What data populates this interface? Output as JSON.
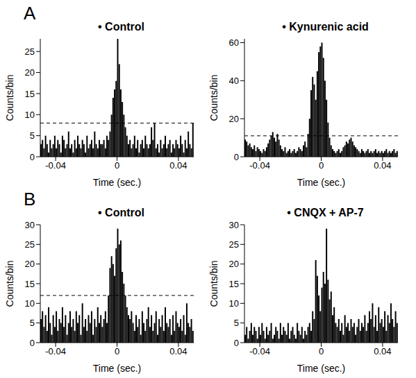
{
  "panels": [
    "A",
    "B"
  ],
  "chart_data": [
    {
      "type": "histogram",
      "title": "• Control",
      "x_label": "Time (sec.)",
      "y_label": "Counts/bin",
      "color": "#000000",
      "xlim": [
        -0.05,
        0.05
      ],
      "xticks": [
        -0.04,
        0,
        0.04
      ],
      "ylim": [
        0,
        28
      ],
      "yticks": [
        0,
        5,
        10,
        15,
        20,
        25
      ],
      "threshold": 8,
      "bins": [
        -0.05,
        -0.049,
        -0.048,
        -0.047,
        -0.046,
        -0.045,
        -0.044,
        -0.043,
        -0.042,
        -0.041,
        -0.04,
        -0.039,
        -0.038,
        -0.037,
        -0.036,
        -0.035,
        -0.034,
        -0.033,
        -0.032,
        -0.031,
        -0.03,
        -0.029,
        -0.028,
        -0.027,
        -0.026,
        -0.025,
        -0.024,
        -0.023,
        -0.022,
        -0.021,
        -0.02,
        -0.019,
        -0.018,
        -0.017,
        -0.016,
        -0.015,
        -0.014,
        -0.013,
        -0.012,
        -0.011,
        -0.01,
        -0.009,
        -0.008,
        -0.007,
        -0.006,
        -0.005,
        -0.004,
        -0.003,
        -0.002,
        -0.001,
        0,
        0.001,
        0.002,
        0.003,
        0.004,
        0.005,
        0.006,
        0.007,
        0.008,
        0.009,
        0.01,
        0.011,
        0.012,
        0.013,
        0.014,
        0.015,
        0.016,
        0.017,
        0.018,
        0.019,
        0.02,
        0.021,
        0.022,
        0.023,
        0.024,
        0.025,
        0.026,
        0.027,
        0.028,
        0.029,
        0.03,
        0.031,
        0.032,
        0.033,
        0.034,
        0.035,
        0.036,
        0.037,
        0.038,
        0.039,
        0.04,
        0.041,
        0.042,
        0.043,
        0.044,
        0.045,
        0.046,
        0.047,
        0.048,
        0.049,
        0.05
      ],
      "values": [
        3,
        4,
        2,
        5,
        3,
        1,
        4,
        2,
        3,
        5,
        2,
        4,
        3,
        1,
        5,
        4,
        2,
        3,
        6,
        2,
        3,
        1,
        4,
        2,
        5,
        3,
        2,
        4,
        3,
        1,
        5,
        2,
        3,
        4,
        2,
        6,
        3,
        2,
        4,
        3,
        3,
        4,
        2,
        5,
        4,
        6,
        10,
        14,
        16,
        18,
        28,
        22,
        16,
        13,
        10,
        7,
        5,
        3,
        4,
        2,
        3,
        5,
        2,
        4,
        1,
        3,
        4,
        2,
        5,
        3,
        2,
        3,
        7,
        4,
        8,
        2,
        3,
        1,
        4,
        2,
        3,
        5,
        2,
        3,
        4,
        1,
        3,
        2,
        4,
        3,
        2,
        5,
        3,
        1,
        4,
        2,
        6,
        3,
        2,
        8
      ]
    },
    {
      "type": "histogram",
      "title": "• Kynurenic acid",
      "x_label": "Time (sec.)",
      "y_label": "Counts/bin",
      "color": "#000000",
      "xlim": [
        -0.05,
        0.05
      ],
      "xticks": [
        -0.04,
        0,
        0.04
      ],
      "ylim": [
        0,
        62
      ],
      "yticks": [
        0,
        20,
        40,
        60
      ],
      "threshold": 11,
      "bins": [
        -0.05,
        -0.049,
        -0.048,
        -0.047,
        -0.046,
        -0.045,
        -0.044,
        -0.043,
        -0.042,
        -0.041,
        -0.04,
        -0.039,
        -0.038,
        -0.037,
        -0.036,
        -0.035,
        -0.034,
        -0.033,
        -0.032,
        -0.031,
        -0.03,
        -0.029,
        -0.028,
        -0.027,
        -0.026,
        -0.025,
        -0.024,
        -0.023,
        -0.022,
        -0.021,
        -0.02,
        -0.019,
        -0.018,
        -0.017,
        -0.016,
        -0.015,
        -0.014,
        -0.013,
        -0.012,
        -0.011,
        -0.01,
        -0.009,
        -0.008,
        -0.007,
        -0.006,
        -0.005,
        -0.004,
        -0.003,
        -0.002,
        -0.001,
        0,
        0.001,
        0.002,
        0.003,
        0.004,
        0.005,
        0.006,
        0.007,
        0.008,
        0.009,
        0.01,
        0.011,
        0.012,
        0.013,
        0.014,
        0.015,
        0.016,
        0.017,
        0.018,
        0.019,
        0.02,
        0.021,
        0.022,
        0.023,
        0.024,
        0.025,
        0.026,
        0.027,
        0.028,
        0.029,
        0.03,
        0.031,
        0.032,
        0.033,
        0.034,
        0.035,
        0.036,
        0.037,
        0.038,
        0.039,
        0.04,
        0.041,
        0.042,
        0.043,
        0.044,
        0.045,
        0.046,
        0.047,
        0.048,
        0.049,
        0.05
      ],
      "values": [
        9,
        8,
        6,
        7,
        5,
        4,
        6,
        3,
        5,
        4,
        3,
        2,
        4,
        3,
        5,
        7,
        9,
        11,
        13,
        10,
        8,
        12,
        9,
        6,
        4,
        3,
        5,
        2,
        3,
        4,
        2,
        3,
        4,
        2,
        3,
        5,
        4,
        3,
        6,
        8,
        5,
        12,
        20,
        35,
        42,
        38,
        30,
        45,
        55,
        58,
        60,
        52,
        40,
        30,
        18,
        10,
        6,
        4,
        3,
        2,
        3,
        4,
        2,
        3,
        5,
        6,
        8,
        7,
        9,
        10,
        8,
        6,
        5,
        4,
        3,
        2,
        4,
        3,
        2,
        3,
        4,
        2,
        3,
        2,
        3,
        4,
        2,
        3,
        2,
        3,
        2,
        3,
        4,
        2,
        3,
        2,
        3,
        4,
        2,
        3
      ]
    },
    {
      "type": "histogram",
      "title": "• Control",
      "x_label": "Time (sec.)",
      "y_label": "Counts/bin",
      "color": "#000000",
      "xlim": [
        -0.05,
        0.05
      ],
      "xticks": [
        -0.04,
        0,
        0.04
      ],
      "ylim": [
        0,
        30
      ],
      "yticks": [
        0,
        5,
        10,
        15,
        20,
        25,
        30
      ],
      "threshold": 12,
      "bins": [
        -0.05,
        -0.049,
        -0.048,
        -0.047,
        -0.046,
        -0.045,
        -0.044,
        -0.043,
        -0.042,
        -0.041,
        -0.04,
        -0.039,
        -0.038,
        -0.037,
        -0.036,
        -0.035,
        -0.034,
        -0.033,
        -0.032,
        -0.031,
        -0.03,
        -0.029,
        -0.028,
        -0.027,
        -0.026,
        -0.025,
        -0.024,
        -0.023,
        -0.022,
        -0.021,
        -0.02,
        -0.019,
        -0.018,
        -0.017,
        -0.016,
        -0.015,
        -0.014,
        -0.013,
        -0.012,
        -0.011,
        -0.01,
        -0.009,
        -0.008,
        -0.007,
        -0.006,
        -0.005,
        -0.004,
        -0.003,
        -0.002,
        -0.001,
        0,
        0.001,
        0.002,
        0.003,
        0.004,
        0.005,
        0.006,
        0.007,
        0.008,
        0.009,
        0.01,
        0.011,
        0.012,
        0.013,
        0.014,
        0.015,
        0.016,
        0.017,
        0.018,
        0.019,
        0.02,
        0.021,
        0.022,
        0.023,
        0.024,
        0.025,
        0.026,
        0.027,
        0.028,
        0.029,
        0.03,
        0.031,
        0.032,
        0.033,
        0.034,
        0.035,
        0.036,
        0.037,
        0.038,
        0.039,
        0.04,
        0.041,
        0.042,
        0.043,
        0.044,
        0.045,
        0.046,
        0.047,
        0.048,
        0.049,
        0.05
      ],
      "values": [
        6,
        8,
        4,
        7,
        3,
        9,
        5,
        2,
        7,
        4,
        8,
        3,
        6,
        5,
        9,
        4,
        7,
        2,
        5,
        8,
        4,
        6,
        3,
        8,
        5,
        7,
        2,
        10,
        4,
        6,
        3,
        7,
        5,
        8,
        2,
        6,
        4,
        9,
        5,
        7,
        4,
        6,
        8,
        5,
        12,
        19,
        22,
        20,
        17,
        24,
        29,
        25,
        26,
        18,
        15,
        12,
        9,
        7,
        6,
        8,
        5,
        3,
        7,
        4,
        6,
        2,
        8,
        5,
        3,
        6,
        9,
        4,
        7,
        3,
        5,
        8,
        2,
        6,
        4,
        7,
        3,
        9,
        5,
        4,
        6,
        2,
        7,
        3,
        8,
        5,
        4,
        6,
        3,
        7,
        2,
        10,
        5,
        4,
        6,
        3
      ]
    },
    {
      "type": "histogram",
      "title": "• CNQX + AP-7",
      "x_label": "Time (sec.)",
      "y_label": "Counts/bin",
      "color": "#000000",
      "xlim": [
        -0.05,
        0.05
      ],
      "xticks": [
        -0.04,
        0,
        0.04
      ],
      "ylim": [
        0,
        30
      ],
      "yticks": [
        0,
        5,
        10,
        15,
        20,
        25,
        30
      ],
      "bins": [
        -0.05,
        -0.049,
        -0.048,
        -0.047,
        -0.046,
        -0.045,
        -0.044,
        -0.043,
        -0.042,
        -0.041,
        -0.04,
        -0.039,
        -0.038,
        -0.037,
        -0.036,
        -0.035,
        -0.034,
        -0.033,
        -0.032,
        -0.031,
        -0.03,
        -0.029,
        -0.028,
        -0.027,
        -0.026,
        -0.025,
        -0.024,
        -0.023,
        -0.022,
        -0.021,
        -0.02,
        -0.019,
        -0.018,
        -0.017,
        -0.016,
        -0.015,
        -0.014,
        -0.013,
        -0.012,
        -0.011,
        -0.01,
        -0.009,
        -0.008,
        -0.007,
        -0.006,
        -0.005,
        -0.004,
        -0.003,
        -0.002,
        -0.001,
        0,
        0.001,
        0.002,
        0.003,
        0.004,
        0.005,
        0.006,
        0.007,
        0.008,
        0.009,
        0.01,
        0.011,
        0.012,
        0.013,
        0.014,
        0.015,
        0.016,
        0.017,
        0.018,
        0.019,
        0.02,
        0.021,
        0.022,
        0.023,
        0.024,
        0.025,
        0.026,
        0.027,
        0.028,
        0.029,
        0.03,
        0.031,
        0.032,
        0.033,
        0.034,
        0.035,
        0.036,
        0.037,
        0.038,
        0.039,
        0.04,
        0.041,
        0.042,
        0.043,
        0.044,
        0.045,
        0.046,
        0.047,
        0.048,
        0.049,
        0.05
      ],
      "values": [
        2,
        4,
        1,
        3,
        5,
        2,
        4,
        3,
        1,
        4,
        2,
        5,
        3,
        1,
        4,
        2,
        3,
        5,
        1,
        2,
        4,
        3,
        1,
        5,
        2,
        4,
        3,
        2,
        5,
        1,
        3,
        4,
        2,
        1,
        5,
        3,
        2,
        4,
        1,
        3,
        2,
        4,
        5,
        3,
        8,
        6,
        21,
        17,
        12,
        8,
        14,
        18,
        15,
        29,
        16,
        11,
        13,
        7,
        9,
        5,
        4,
        6,
        3,
        5,
        2,
        7,
        4,
        5,
        3,
        6,
        4,
        5,
        2,
        4,
        6,
        3,
        5,
        4,
        7,
        3,
        5,
        8,
        6,
        10,
        4,
        7,
        3,
        9,
        5,
        6,
        4,
        8,
        3,
        7,
        5,
        10,
        6,
        4,
        8,
        5
      ]
    }
  ]
}
